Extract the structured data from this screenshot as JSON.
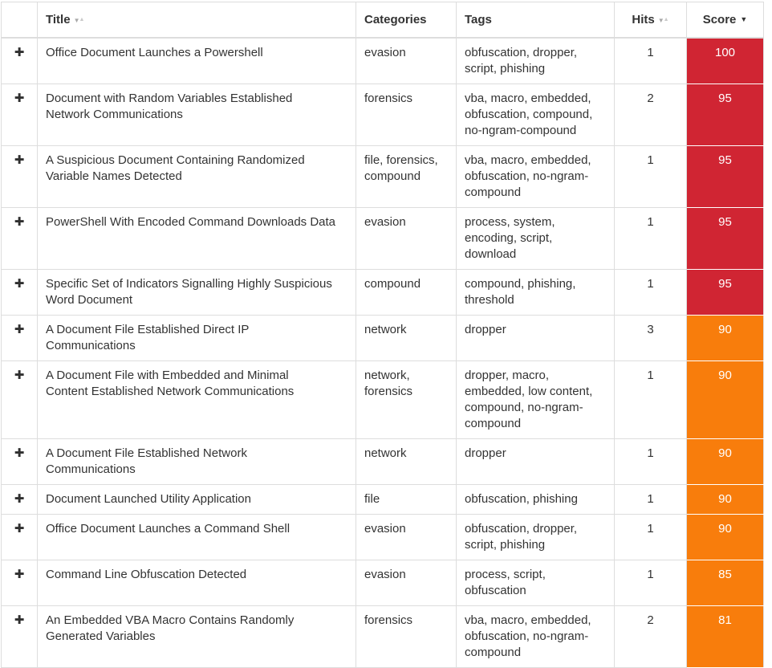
{
  "header": {
    "expand": "",
    "title": "Title",
    "categories": "Categories",
    "tags": "Tags",
    "hits": "Hits",
    "score": "Score"
  },
  "sort_icons": {
    "inactive_down": "▼",
    "inactive_up": "▲",
    "active_desc": "▼"
  },
  "expand_symbol": "✚",
  "colors": {
    "high": "#d02533",
    "medium": "#f87d0c",
    "score_text": "#ffffff",
    "border": "#dddddd",
    "text": "#333333"
  },
  "rows": [
    {
      "title": "Office Document Launches a Powershell",
      "categories": "evasion",
      "tags": "obfuscation, dropper,\nscript, phishing",
      "hits": "1",
      "score": "100",
      "severity": "high"
    },
    {
      "title": "Document with Random Variables Established\nNetwork Communications",
      "categories": "forensics",
      "tags": "vba, macro, embedded,\nobfuscation, compound,\nno-ngram-compound",
      "hits": "2",
      "score": "95",
      "severity": "high"
    },
    {
      "title": "A Suspicious Document Containing Randomized\nVariable Names Detected",
      "categories": "file, forensics,\ncompound",
      "tags": "vba, macro, embedded,\nobfuscation, no-ngram-\ncompound",
      "hits": "1",
      "score": "95",
      "severity": "high"
    },
    {
      "title": "PowerShell With Encoded Command Downloads Data",
      "categories": "evasion",
      "tags": "process, system,\nencoding, script,\ndownload",
      "hits": "1",
      "score": "95",
      "severity": "high"
    },
    {
      "title": "Specific Set of Indicators Signalling Highly Suspicious\nWord Document",
      "categories": "compound",
      "tags": "compound, phishing,\nthreshold",
      "hits": "1",
      "score": "95",
      "severity": "high"
    },
    {
      "title": "A Document File Established Direct IP\nCommunications",
      "categories": "network",
      "tags": "dropper",
      "hits": "3",
      "score": "90",
      "severity": "medium"
    },
    {
      "title": "A Document File with Embedded and Minimal\nContent Established Network Communications",
      "categories": "network,\nforensics",
      "tags": "dropper, macro,\nembedded, low content,\ncompound, no-ngram-\ncompound",
      "hits": "1",
      "score": "90",
      "severity": "medium"
    },
    {
      "title": "A Document File Established Network\nCommunications",
      "categories": "network",
      "tags": "dropper",
      "hits": "1",
      "score": "90",
      "severity": "medium"
    },
    {
      "title": "Document Launched Utility Application",
      "categories": "file",
      "tags": "obfuscation, phishing",
      "hits": "1",
      "score": "90",
      "severity": "medium"
    },
    {
      "title": "Office Document Launches a Command Shell",
      "categories": "evasion",
      "tags": "obfuscation, dropper,\nscript, phishing",
      "hits": "1",
      "score": "90",
      "severity": "medium"
    },
    {
      "title": "Command Line Obfuscation Detected",
      "categories": "evasion",
      "tags": "process, script,\nobfuscation",
      "hits": "1",
      "score": "85",
      "severity": "medium"
    },
    {
      "title": "An Embedded VBA Macro Contains Randomly\nGenerated Variables",
      "categories": "forensics",
      "tags": "vba, macro, embedded,\nobfuscation, no-ngram-\ncompound",
      "hits": "2",
      "score": "81",
      "severity": "medium"
    }
  ]
}
